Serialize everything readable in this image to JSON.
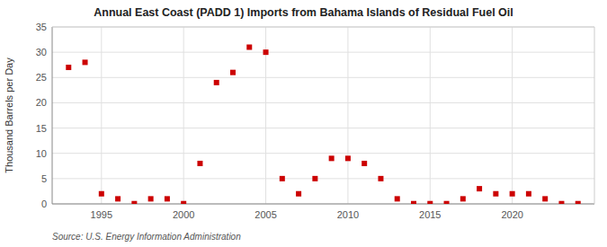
{
  "chart_data": {
    "type": "scatter",
    "title": "Annual East Coast (PADD 1) Imports from Bahama Islands of Residual Fuel Oil",
    "ylabel": "Thousand Barrels per Day",
    "source": "Source: U.S. Energy Information Administration",
    "color": "#cc0000",
    "marker": "square",
    "x": [
      1993,
      1994,
      1995,
      1996,
      1997,
      1998,
      1999,
      2000,
      2001,
      2002,
      2003,
      2004,
      2005,
      2006,
      2007,
      2008,
      2009,
      2010,
      2011,
      2012,
      2013,
      2014,
      2015,
      2016,
      2017,
      2018,
      2019,
      2020,
      2021,
      2022,
      2023,
      2024
    ],
    "values": [
      27.0,
      28.0,
      2.0,
      1.0,
      0.05,
      1.0,
      1.0,
      0.05,
      8.0,
      24.0,
      26.0,
      31.0,
      30.0,
      5.0,
      2.0,
      5.0,
      9.0,
      9.0,
      8.0,
      5.0,
      1.0,
      0.05,
      0.05,
      0.05,
      1.0,
      3.0,
      2.0,
      2.0,
      2.0,
      1.0,
      0.05,
      0.05
    ],
    "xlim": [
      1992.0,
      2025.0
    ],
    "xticks": [
      1995,
      2000,
      2005,
      2010,
      2015,
      2020
    ],
    "ylim": [
      0,
      35
    ],
    "yticks": [
      0,
      5,
      10,
      15,
      20,
      25,
      30,
      35
    ],
    "grid": true
  }
}
